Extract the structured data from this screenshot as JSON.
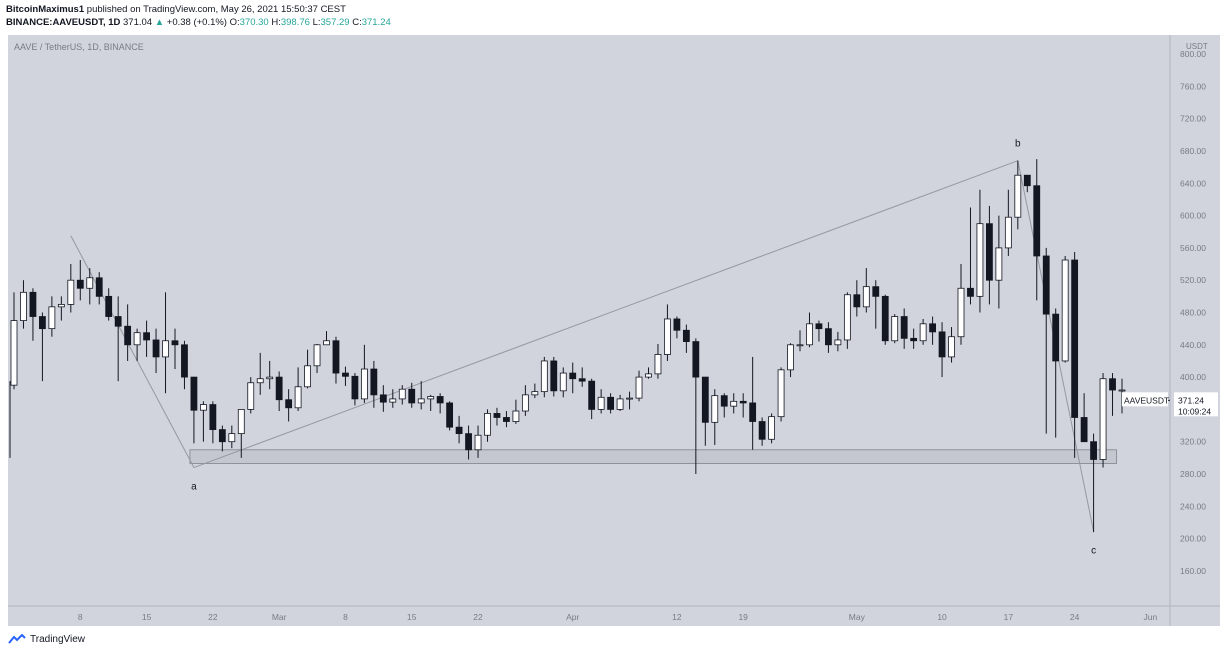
{
  "header": {
    "author": "BitcoinMaximus1",
    "published": "published on TradingView.com, May 26, 2021 15:50:37 CEST",
    "symbol": "BINANCE:AAVEUSDT, 1D",
    "last": "371.04",
    "arrow": "▲",
    "change": "+0.38 (+0.1%)",
    "o_label": "O:",
    "o_value": "370.30",
    "h_label": "H:",
    "h_value": "398.76",
    "l_label": "L:",
    "l_value": "357.29",
    "c_label": "C:",
    "c_value": "371.24"
  },
  "footer": {
    "brand": "TradingView"
  },
  "colors": {
    "chart_bg": "#d1d4dc",
    "frame_bg": "#ffffff",
    "candle_line": "#131722",
    "wave_line": "#9598a1",
    "support_box": "#c4c7cf",
    "text": "#131722",
    "price_tag_bg": "#ffffff"
  },
  "chart_data": {
    "type": "candlestick",
    "title": "AAVE / TetherUS, 1D, BINANCE",
    "y_unit": "USDT",
    "ylim": [
      100,
      880
    ],
    "y_ticks": [
      "160.00",
      "200.00",
      "240.00",
      "280.00",
      "320.00",
      "360.00",
      "400.00",
      "440.00",
      "480.00",
      "520.00",
      "560.00",
      "600.00",
      "640.00",
      "680.00",
      "720.00",
      "760.00",
      "800.00"
    ],
    "x_ticks": [
      {
        "label": "8",
        "day": 8
      },
      {
        "label": "15",
        "day": 15
      },
      {
        "label": "22",
        "day": 22
      },
      {
        "label": "Mar",
        "day": 29
      },
      {
        "label": "8",
        "day": 36
      },
      {
        "label": "15",
        "day": 43
      },
      {
        "label": "22",
        "day": 50
      },
      {
        "label": "Apr",
        "day": 60
      },
      {
        "label": "12",
        "day": 71
      },
      {
        "label": "19",
        "day": 78
      },
      {
        "label": "May",
        "day": 90
      },
      {
        "label": "10",
        "day": 99
      },
      {
        "label": "17",
        "day": 106
      },
      {
        "label": "24",
        "day": 113
      },
      {
        "label": "Jun",
        "day": 121
      }
    ],
    "last_price": {
      "symbol": "AAVEUSDT",
      "value": "371.24",
      "countdown": "10:09:24"
    },
    "candles": [
      [
        1,
        390,
        470,
        385,
        505
      ],
      [
        2,
        470,
        505,
        460,
        520
      ],
      [
        3,
        505,
        475,
        445,
        510
      ],
      [
        4,
        475,
        460,
        395,
        480
      ],
      [
        5,
        460,
        487,
        450,
        500
      ],
      [
        6,
        487,
        490,
        470,
        500
      ],
      [
        7,
        490,
        520,
        480,
        540
      ],
      [
        8,
        520,
        510,
        495,
        545
      ],
      [
        9,
        510,
        523,
        490,
        535
      ],
      [
        10,
        523,
        500,
        490,
        530
      ],
      [
        11,
        500,
        475,
        470,
        510
      ],
      [
        12,
        475,
        463,
        395,
        500
      ],
      [
        13,
        463,
        440,
        420,
        490
      ],
      [
        14,
        440,
        455,
        420,
        460
      ],
      [
        15,
        455,
        446,
        425,
        470
      ],
      [
        16,
        446,
        425,
        405,
        460
      ],
      [
        17,
        425,
        445,
        380,
        505
      ],
      [
        18,
        445,
        440,
        410,
        460
      ],
      [
        19,
        440,
        400,
        385,
        445
      ],
      [
        20,
        400,
        359,
        318,
        400
      ],
      [
        21,
        359,
        366,
        320,
        370
      ],
      [
        22,
        366,
        335,
        318,
        370
      ],
      [
        23,
        335,
        320,
        308,
        340
      ],
      [
        24,
        320,
        330,
        312,
        340
      ],
      [
        25,
        330,
        360,
        300,
        360
      ],
      [
        26,
        360,
        393,
        355,
        400
      ],
      [
        27,
        393,
        398,
        378,
        430
      ],
      [
        28,
        398,
        400,
        385,
        420
      ],
      [
        29,
        400,
        372,
        358,
        407
      ],
      [
        30,
        372,
        362,
        345,
        385
      ],
      [
        31,
        362,
        388,
        358,
        412
      ],
      [
        32,
        388,
        414,
        386,
        434
      ],
      [
        33,
        414,
        440,
        405,
        441
      ],
      [
        34,
        440,
        445,
        440,
        457
      ],
      [
        35,
        445,
        405,
        392,
        450
      ],
      [
        36,
        405,
        401,
        389,
        413
      ],
      [
        37,
        401,
        373,
        365,
        405
      ],
      [
        38,
        373,
        410,
        368,
        440
      ],
      [
        39,
        410,
        378,
        362,
        420
      ],
      [
        40,
        378,
        369,
        357,
        390
      ],
      [
        41,
        369,
        373,
        362,
        385
      ],
      [
        42,
        373,
        385,
        366,
        390
      ],
      [
        43,
        385,
        368,
        362,
        393
      ],
      [
        44,
        368,
        373,
        360,
        395
      ],
      [
        45,
        373,
        376,
        358,
        378
      ],
      [
        46,
        376,
        368,
        355,
        380
      ],
      [
        47,
        368,
        338,
        334,
        370
      ],
      [
        48,
        338,
        330,
        318,
        352
      ],
      [
        49,
        330,
        310,
        298,
        340
      ],
      [
        50,
        310,
        328,
        300,
        340
      ],
      [
        51,
        328,
        355,
        320,
        360
      ],
      [
        52,
        355,
        350,
        340,
        362
      ],
      [
        53,
        350,
        345,
        338,
        358
      ],
      [
        54,
        345,
        358,
        342,
        372
      ],
      [
        55,
        358,
        378,
        352,
        390
      ],
      [
        56,
        378,
        382,
        374,
        392
      ],
      [
        57,
        382,
        420,
        375,
        425
      ],
      [
        58,
        420,
        383,
        376,
        425
      ],
      [
        59,
        383,
        405,
        375,
        412
      ],
      [
        60,
        405,
        398,
        380,
        418
      ],
      [
        61,
        398,
        395,
        388,
        412
      ],
      [
        62,
        395,
        360,
        348,
        398
      ],
      [
        63,
        360,
        375,
        355,
        385
      ],
      [
        64,
        375,
        360,
        355,
        380
      ],
      [
        65,
        360,
        373,
        358,
        378
      ],
      [
        66,
        373,
        374,
        360,
        382
      ],
      [
        67,
        374,
        400,
        370,
        408
      ],
      [
        68,
        400,
        404,
        398,
        412
      ],
      [
        69,
        404,
        428,
        398,
        441
      ],
      [
        70,
        428,
        472,
        420,
        490
      ],
      [
        71,
        472,
        458,
        448,
        475
      ],
      [
        72,
        458,
        444,
        430,
        465
      ],
      [
        73,
        444,
        400,
        280,
        448
      ],
      [
        74,
        400,
        344,
        315,
        400
      ],
      [
        75,
        344,
        377,
        316,
        385
      ],
      [
        76,
        377,
        364,
        350,
        380
      ],
      [
        77,
        364,
        370,
        355,
        380
      ],
      [
        78,
        370,
        368,
        350,
        380
      ],
      [
        79,
        368,
        345,
        310,
        425
      ],
      [
        80,
        345,
        323,
        315,
        350
      ],
      [
        81,
        323,
        351,
        318,
        355
      ],
      [
        82,
        351,
        409,
        345,
        412
      ],
      [
        83,
        409,
        440,
        400,
        442
      ],
      [
        84,
        440,
        440,
        432,
        458
      ],
      [
        85,
        440,
        466,
        437,
        480
      ],
      [
        86,
        466,
        460,
        444,
        470
      ],
      [
        87,
        460,
        440,
        430,
        468
      ],
      [
        88,
        440,
        446,
        432,
        456
      ],
      [
        89,
        446,
        502,
        435,
        505
      ],
      [
        90,
        502,
        487,
        475,
        520
      ],
      [
        91,
        487,
        512,
        480,
        535
      ],
      [
        92,
        512,
        500,
        460,
        520
      ],
      [
        93,
        500,
        445,
        440,
        502
      ],
      [
        94,
        445,
        475,
        442,
        478
      ],
      [
        95,
        475,
        448,
        435,
        485
      ],
      [
        96,
        448,
        445,
        435,
        460
      ],
      [
        97,
        445,
        466,
        440,
        472
      ],
      [
        98,
        466,
        456,
        440,
        475
      ],
      [
        99,
        456,
        425,
        400,
        468
      ],
      [
        100,
        425,
        450,
        418,
        462
      ],
      [
        101,
        450,
        510,
        440,
        540
      ],
      [
        102,
        510,
        500,
        490,
        610
      ],
      [
        103,
        500,
        590,
        480,
        632
      ],
      [
        104,
        590,
        520,
        490,
        612
      ],
      [
        105,
        520,
        560,
        485,
        600
      ],
      [
        106,
        560,
        598,
        550,
        632
      ],
      [
        107,
        598,
        650,
        583,
        668
      ],
      [
        108,
        650,
        637,
        629,
        650
      ],
      [
        109,
        637,
        550,
        495,
        670
      ],
      [
        110,
        550,
        478,
        330,
        560
      ],
      [
        111,
        478,
        420,
        325,
        485
      ],
      [
        112,
        420,
        545,
        418,
        550
      ],
      [
        113,
        545,
        350,
        300,
        555
      ],
      [
        114,
        350,
        320,
        320,
        380
      ],
      [
        115,
        320,
        298,
        208,
        330
      ],
      [
        116,
        298,
        398,
        288,
        405
      ],
      [
        117,
        398,
        384,
        352,
        405
      ],
      [
        118,
        384,
        384,
        355,
        398
      ]
    ],
    "support_zone": {
      "from_day": 20,
      "to_day": 117,
      "low": 293,
      "high": 310
    },
    "wave": [
      {
        "day": 7,
        "price": 575,
        "label": ""
      },
      {
        "day": 20,
        "price": 288,
        "label": "a"
      },
      {
        "day": 107,
        "price": 668,
        "label": "b"
      },
      {
        "day": 115,
        "price": 209,
        "label": "c"
      }
    ],
    "grid": false,
    "legend": "none"
  }
}
